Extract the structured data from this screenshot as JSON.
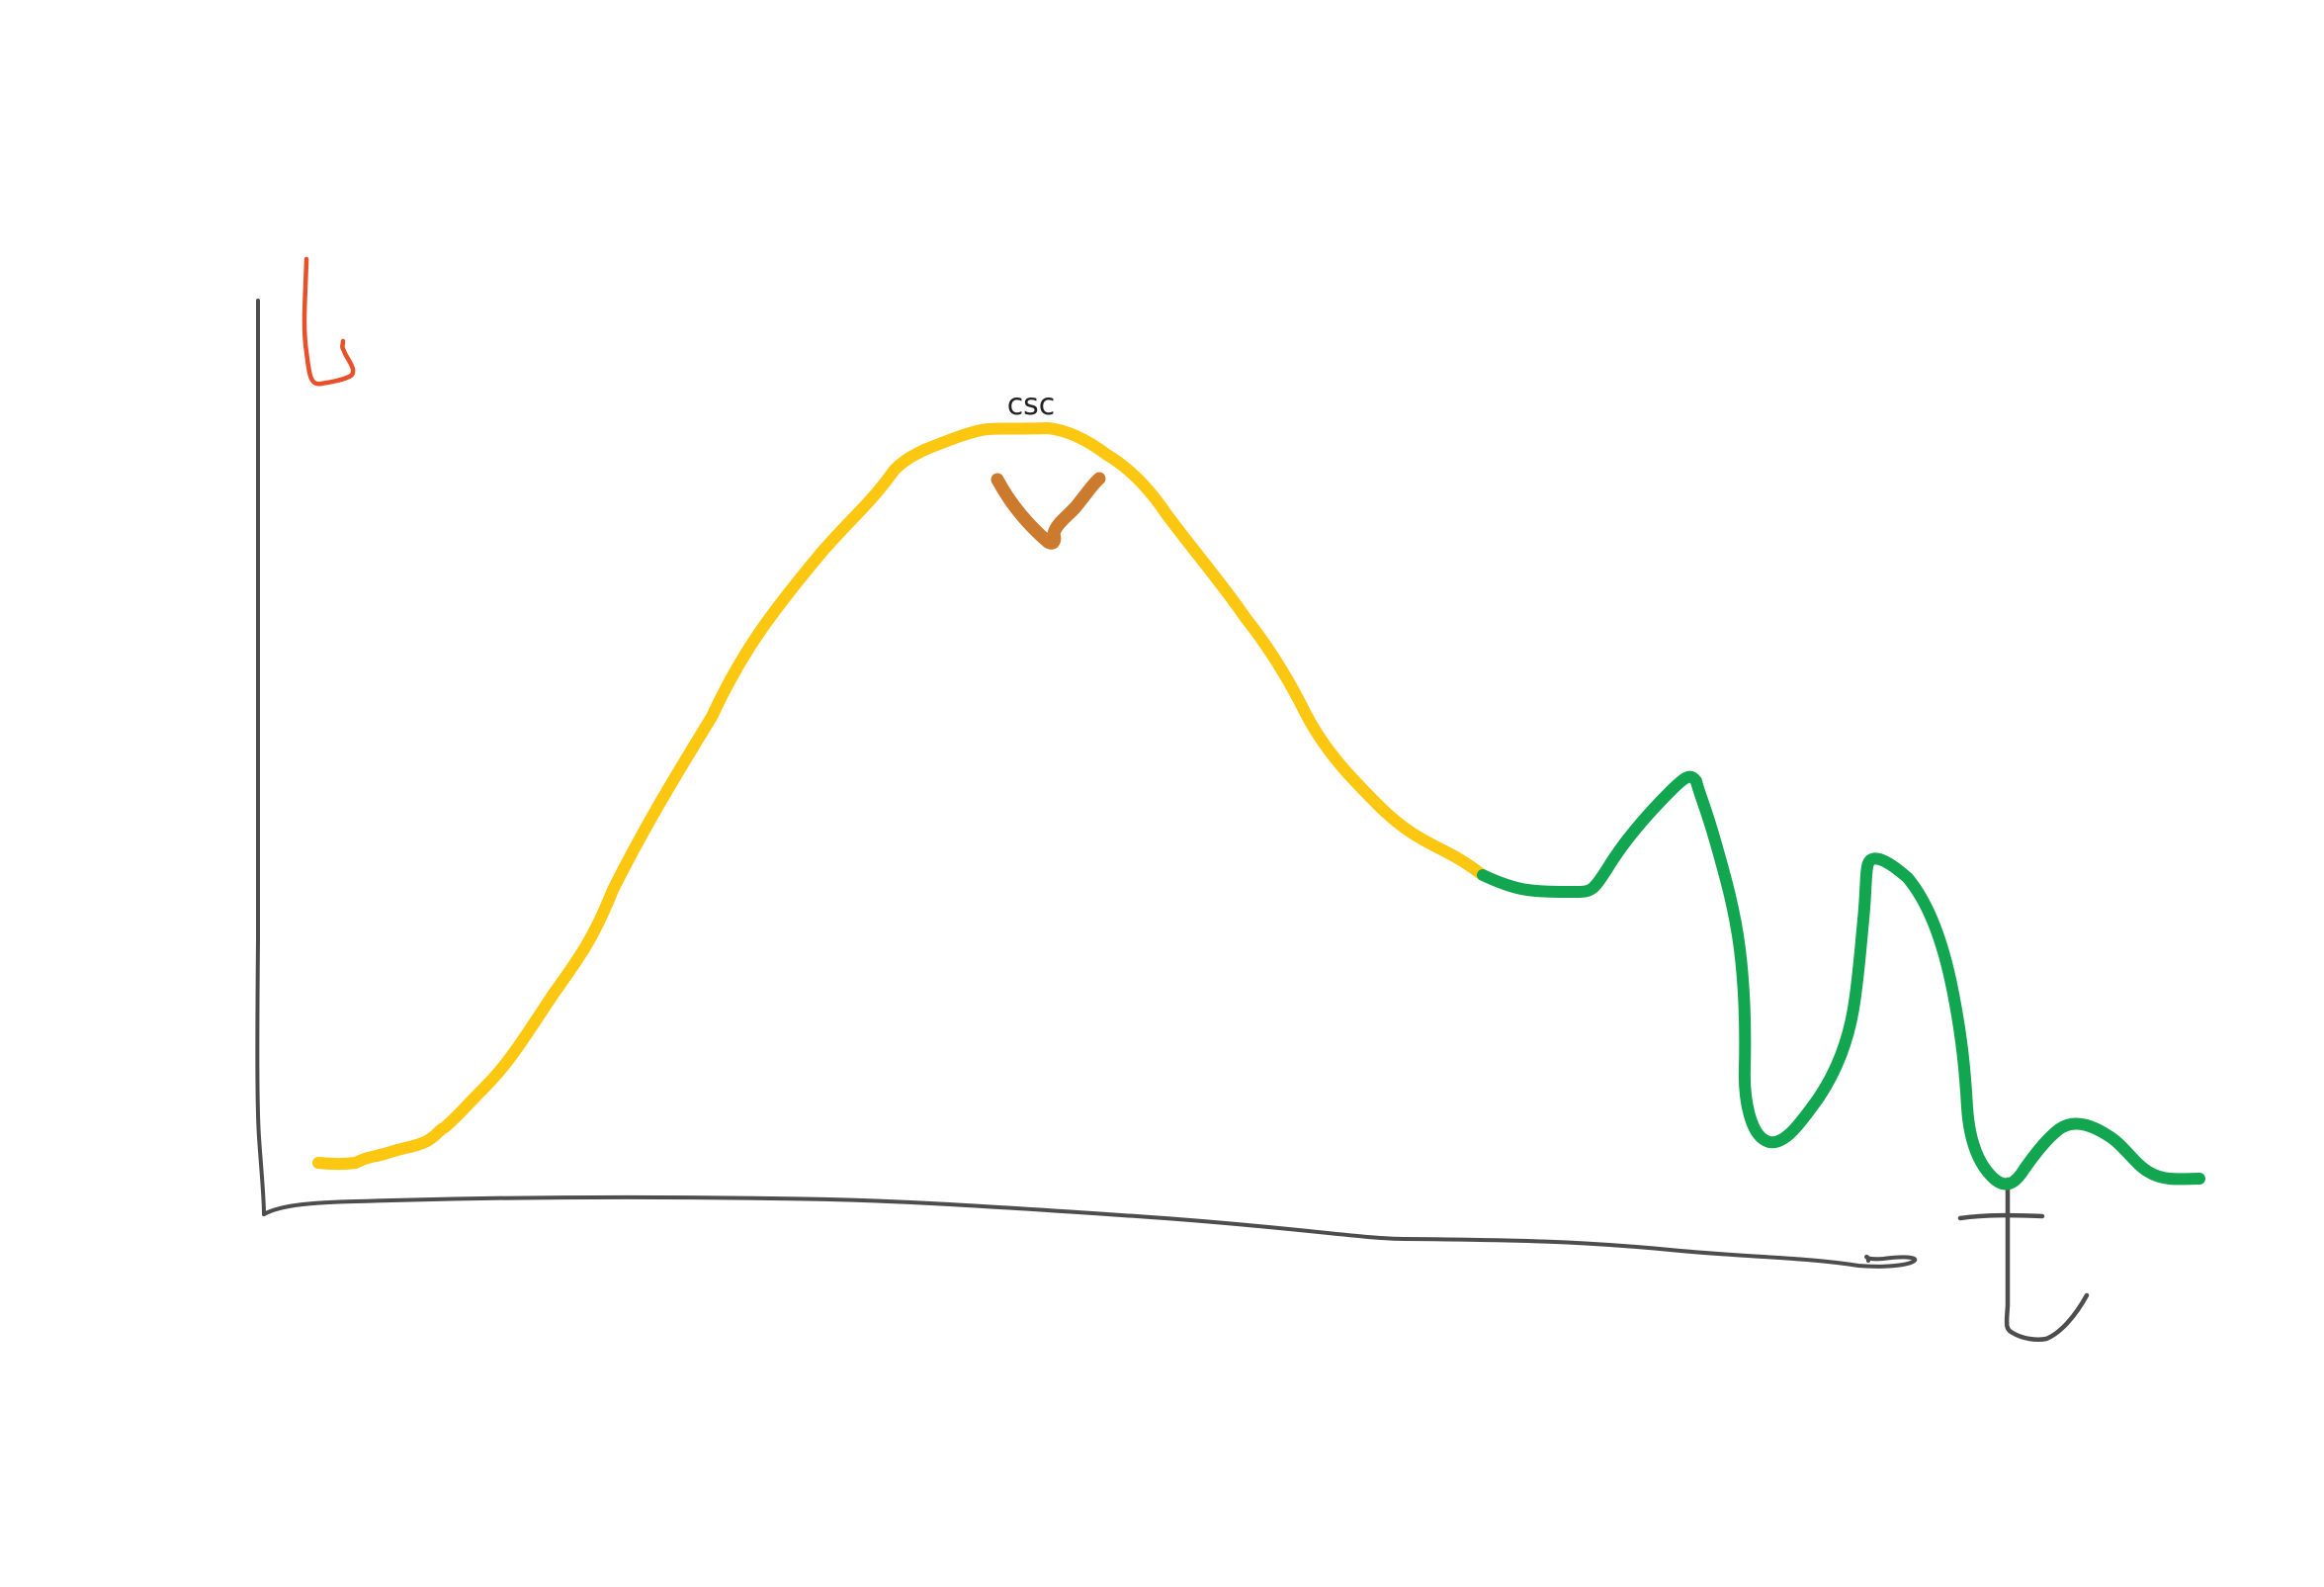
{
  "diagram": {
    "annotation": "csc",
    "colors": {
      "axis": "#4d4d4d",
      "y_label": "#e8502a",
      "x_label": "#4d4d4d",
      "growth_curve": "#fcc710",
      "peak_mark": "#cc7a2e",
      "decline_curve": "#12a650",
      "annotation_text": "#222222",
      "background": "#ffffff"
    },
    "handwritten_labels": {
      "y_axis": "L",
      "x_axis": "t"
    }
  }
}
